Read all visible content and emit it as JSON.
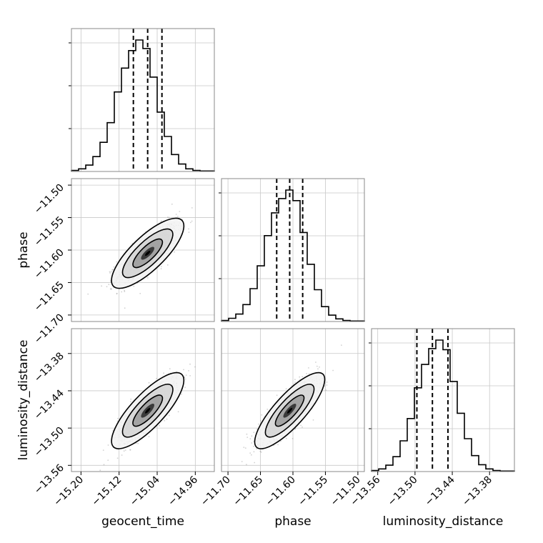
{
  "chart_data": {
    "type": "corner",
    "grid": true,
    "parameters": [
      "geocent_time",
      "phase",
      "luminosity_distance"
    ],
    "axes": {
      "geocent_time": {
        "label": "geocent_time",
        "ticks": [
          -15.2,
          -15.12,
          -15.04,
          -14.96
        ],
        "tick_labels": [
          "−15.20",
          "−15.12",
          "−15.04",
          "−14.96"
        ],
        "range": [
          -15.22,
          -14.92
        ]
      },
      "phase": {
        "label": "phase",
        "ticks": [
          -11.7,
          -11.65,
          -11.6,
          -11.55,
          -11.5
        ],
        "tick_labels": [
          "−11.70",
          "−11.65",
          "−11.60",
          "−11.55",
          "−11.50"
        ],
        "range": [
          -11.71,
          -11.49
        ]
      },
      "luminosity_distance": {
        "label": "luminosity_distance",
        "ticks": [
          -13.56,
          -13.5,
          -13.44,
          -13.38
        ],
        "tick_labels": [
          "−13.56",
          "−13.50",
          "−13.44",
          "−13.38"
        ],
        "range": [
          -13.57,
          -13.34
        ]
      }
    },
    "marginals": [
      {
        "parameter": "geocent_time",
        "bin_edges_start": -15.22,
        "bin_width": 0.015,
        "counts": [
          2,
          5,
          12,
          28,
          55,
          92,
          150,
          195,
          228,
          248,
          232,
          178,
          112,
          66,
          32,
          14,
          5,
          2,
          1,
          1
        ],
        "quantiles": [
          -15.09,
          -15.06,
          -15.03
        ]
      },
      {
        "parameter": "phase",
        "bin_edges_start": -11.71,
        "bin_width": 0.011,
        "counts": [
          2,
          6,
          14,
          32,
          62,
          105,
          162,
          205,
          232,
          248,
          228,
          168,
          108,
          60,
          28,
          12,
          5,
          2,
          1,
          1
        ],
        "quantiles": [
          -11.625,
          -11.605,
          -11.585
        ]
      },
      {
        "parameter": "luminosity_distance",
        "bin_edges_start": -13.57,
        "bin_width": 0.0115,
        "counts": [
          2,
          5,
          12,
          28,
          58,
          100,
          158,
          202,
          232,
          248,
          230,
          170,
          110,
          62,
          30,
          13,
          5,
          2,
          1,
          1
        ],
        "quantiles": [
          -13.497,
          -13.472,
          -13.447
        ]
      }
    ],
    "joints": [
      {
        "x": "geocent_time",
        "y": "phase",
        "mean": [
          -15.06,
          -11.605
        ],
        "sd": [
          0.031,
          0.022
        ],
        "corr": 0.78
      },
      {
        "x": "geocent_time",
        "y": "luminosity_distance",
        "mean": [
          -15.06,
          -13.472
        ],
        "sd": [
          0.031,
          0.025
        ],
        "corr": 0.8
      },
      {
        "x": "phase",
        "y": "luminosity_distance",
        "mean": [
          -11.605,
          -13.472
        ],
        "sd": [
          0.022,
          0.025
        ],
        "corr": 0.82
      }
    ]
  }
}
